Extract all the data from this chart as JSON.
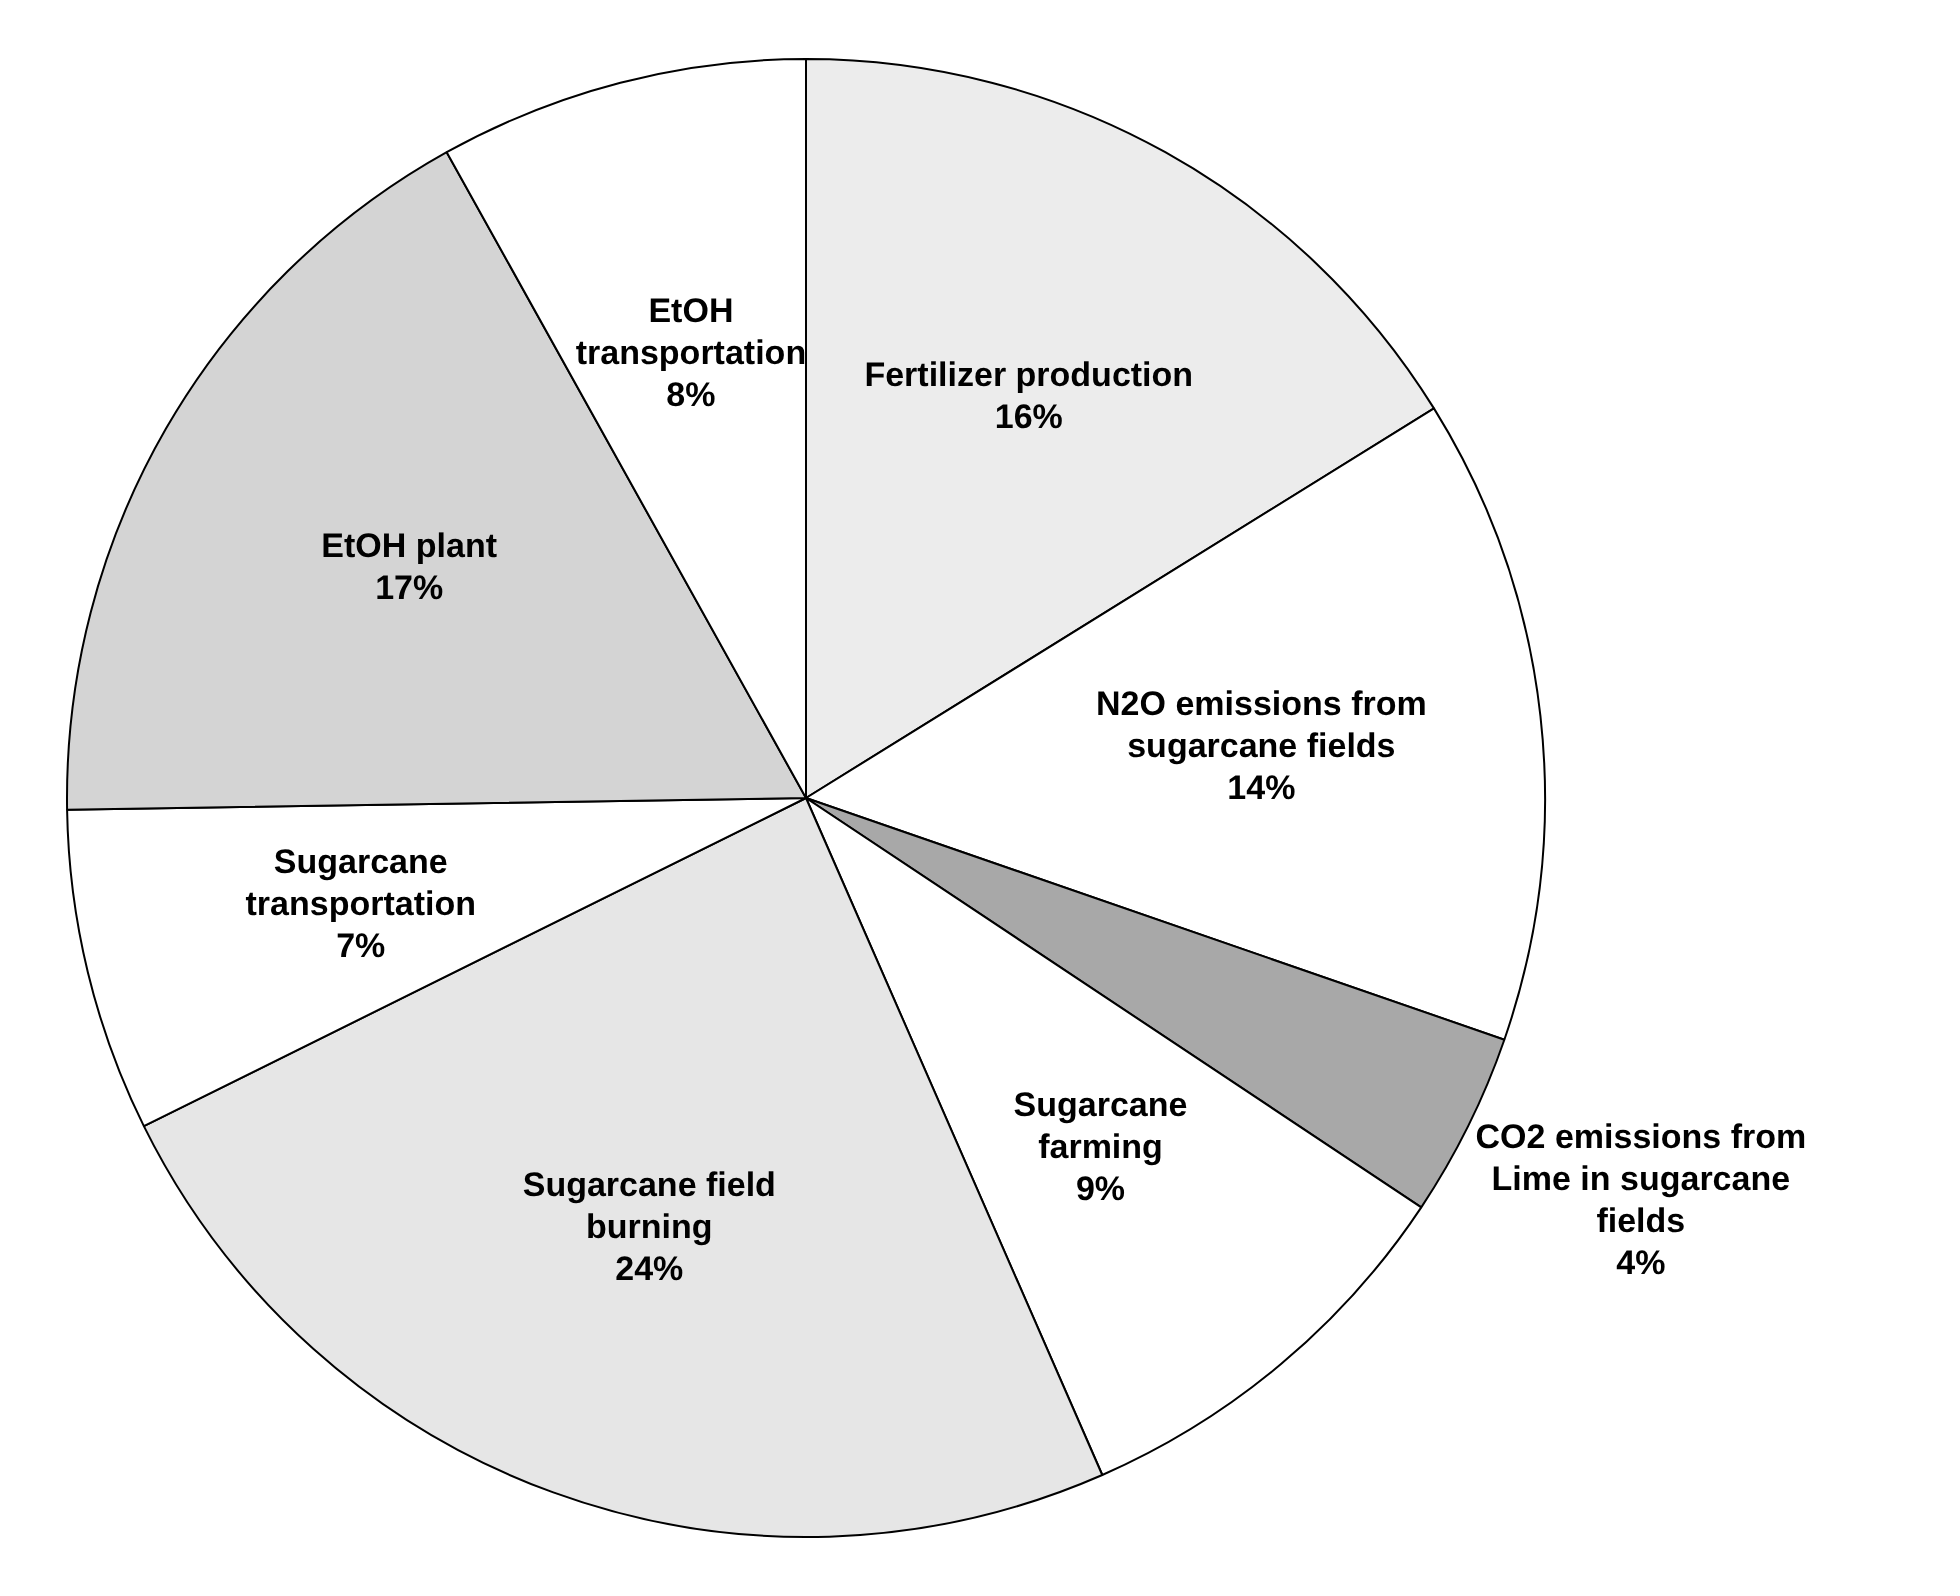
{
  "chart_data": {
    "type": "pie",
    "categories": [
      "Fertilizer production",
      "N2O emissions from sugarcane fields",
      "CO2 emissions from Lime in sugarcane fields",
      "Sugarcane farming",
      "Sugarcane field burning",
      "Sugarcane transportation",
      "EtOH plant",
      "EtOH transportation"
    ],
    "values": [
      16,
      14,
      4,
      9,
      24,
      7,
      17,
      8
    ],
    "value_labels": [
      "16%",
      "14%",
      "4%",
      "9%",
      "24%",
      "7%",
      "17%",
      "8%"
    ],
    "colors": [
      "#ececec",
      "#ffffff",
      "#a8a8a8",
      "#ffffff",
      "#e6e6e6",
      "#ffffff",
      "#d4d4d4",
      "#ffffff"
    ]
  }
}
